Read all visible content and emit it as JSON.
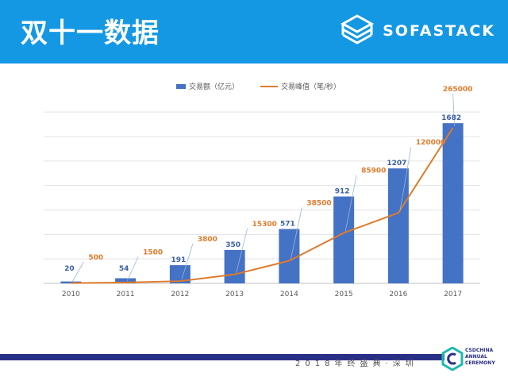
{
  "header": {
    "title": "双十一数据",
    "brand": "SOFASTACK",
    "brand_logo_icon": "stacked-cube-icon",
    "background_color": "#1598e3"
  },
  "chart_data": {
    "type": "bar",
    "categories": [
      "2010",
      "2011",
      "2012",
      "2013",
      "2014",
      "2015",
      "2016",
      "2017"
    ],
    "series": [
      {
        "name": "交易额（亿元）",
        "type": "bar",
        "color": "#4472c4",
        "values": [
          20,
          54,
          191,
          350,
          571,
          912,
          1207,
          1682
        ]
      },
      {
        "name": "交易峰值（笔/秒）",
        "type": "line",
        "color": "#e07b2b",
        "values": [
          500,
          1500,
          3800,
          15300,
          38500,
          85900,
          120000,
          265000
        ]
      }
    ],
    "legend_position": "top-center",
    "grid": true
  },
  "footer": {
    "text": "2018年终盛典·深圳",
    "logo_icon": "ceremony-c-logo-icon",
    "logo_lines": [
      "CSDCHINA",
      "ANNUAL",
      "CEREMONY"
    ],
    "bar_color": "#2a2f86"
  }
}
